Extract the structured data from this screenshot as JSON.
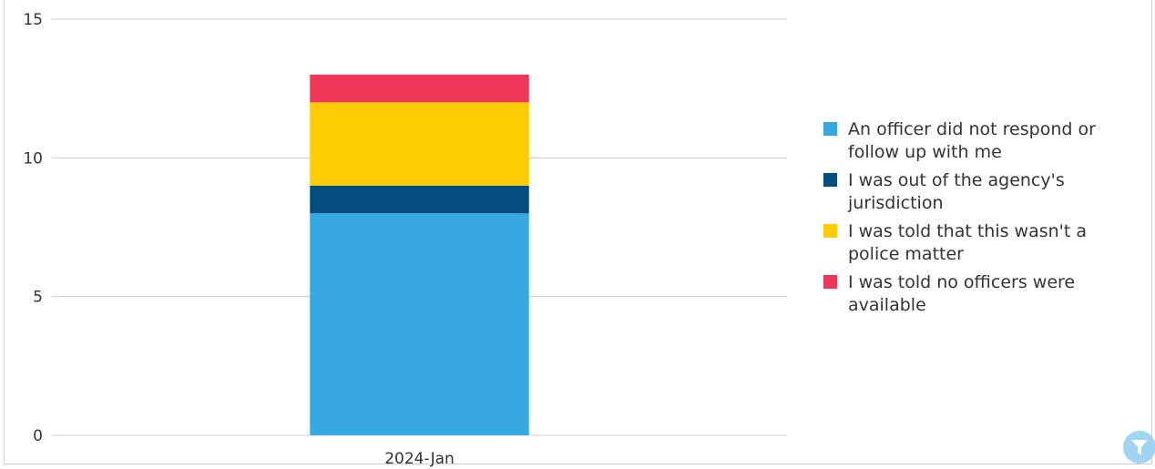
{
  "chart_data": {
    "type": "bar",
    "stacked": true,
    "categories": [
      "2024-Jan"
    ],
    "series": [
      {
        "name": "An officer did not respond or follow up with me",
        "values": [
          8
        ],
        "color": "#38a8e0"
      },
      {
        "name": "I was out of the agency's jurisdiction",
        "values": [
          1
        ],
        "color": "#044e7f"
      },
      {
        "name": "I was told that this wasn't a police matter",
        "values": [
          3
        ],
        "color": "#fdcc02"
      },
      {
        "name": "I was told no officers were available",
        "values": [
          1
        ],
        "color": "#ee3659"
      }
    ],
    "yticks": [
      "0",
      "5",
      "10",
      "15"
    ],
    "ylim": [
      0,
      15
    ],
    "grid": true,
    "legend_position": "right"
  },
  "legend": {
    "items": [
      {
        "label": "An officer did not respond or follow up with me",
        "color": "#38a8e0"
      },
      {
        "label": "I was out of the agency's jurisdiction",
        "color": "#044e7f"
      },
      {
        "label": "I was told that this wasn't a police matter",
        "color": "#fdcc02"
      },
      {
        "label": "I was told no officers were available",
        "color": "#ee3659"
      }
    ]
  },
  "filter_button": {
    "icon": "filter-icon",
    "color": "#9fd4f2"
  }
}
